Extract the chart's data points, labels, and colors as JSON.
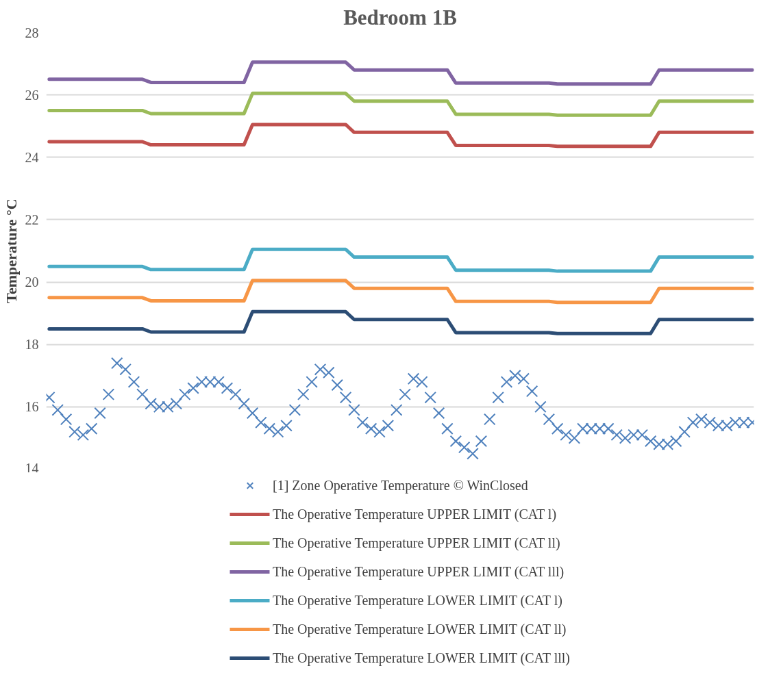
{
  "chart_data": {
    "type": "line",
    "title": "Bedroom 1B",
    "ylabel": "Temperature °C",
    "categories": [
      null,
      null,
      null,
      null,
      null,
      null,
      null,
      null,
      null,
      null,
      null,
      null,
      null,
      null,
      null,
      null,
      null,
      null,
      null,
      null,
      null,
      null,
      null,
      null,
      null,
      null,
      null,
      null,
      null,
      null,
      null,
      null,
      null,
      null,
      null,
      null,
      null,
      null,
      null,
      null,
      null,
      null,
      null,
      null,
      null,
      null,
      null,
      null,
      null,
      null,
      null,
      null,
      null,
      null,
      null,
      null,
      null,
      null,
      null,
      null,
      null,
      null,
      null,
      null,
      null,
      null,
      null,
      null,
      null,
      null,
      null,
      null,
      null,
      null,
      null,
      null,
      null,
      null,
      null,
      null,
      null,
      null,
      null,
      null
    ],
    "ylim": [
      14,
      28
    ],
    "yticks": [
      14,
      16,
      18,
      20,
      22,
      24,
      26,
      28
    ],
    "grid": "y",
    "legend": "bottom",
    "series": [
      {
        "name": "[1] Zone Operative Temperature © WinClosed",
        "type": "scatter",
        "marker": "cross",
        "color": "#4f81bd",
        "values": [
          16.3,
          15.9,
          15.6,
          15.2,
          15.1,
          15.3,
          15.8,
          16.4,
          17.4,
          17.2,
          16.8,
          16.4,
          16.1,
          16.0,
          16.0,
          16.1,
          16.4,
          16.6,
          16.8,
          16.8,
          16.8,
          16.6,
          16.4,
          16.1,
          15.8,
          15.5,
          15.3,
          15.2,
          15.4,
          15.9,
          16.4,
          16.8,
          17.2,
          17.1,
          16.7,
          16.3,
          15.9,
          15.5,
          15.3,
          15.2,
          15.4,
          15.9,
          16.4,
          16.9,
          16.8,
          16.3,
          15.8,
          15.3,
          14.9,
          14.7,
          14.5,
          14.9,
          15.6,
          16.3,
          16.8,
          17.0,
          16.9,
          16.5,
          16.0,
          15.6,
          15.3,
          15.1,
          15.0,
          15.3,
          15.3,
          15.3,
          15.3,
          15.1,
          15.0,
          15.1,
          15.1,
          14.9,
          14.8,
          14.8,
          14.9,
          15.2,
          15.5,
          15.6,
          15.5,
          15.4,
          15.4,
          15.5,
          15.5,
          15.5
        ]
      },
      {
        "name": "The Operative Temperature UPPER LIMIT (CAT l)",
        "color": "#c0504d",
        "values": [
          24.5,
          24.5,
          24.5,
          24.5,
          24.5,
          24.5,
          24.5,
          24.5,
          24.5,
          24.5,
          24.5,
          24.5,
          24.4,
          24.4,
          24.4,
          24.4,
          24.4,
          24.4,
          24.4,
          24.4,
          24.4,
          24.4,
          24.4,
          24.4,
          25.05,
          25.05,
          25.05,
          25.05,
          25.05,
          25.05,
          25.05,
          25.05,
          25.05,
          25.05,
          25.05,
          25.05,
          24.8,
          24.8,
          24.8,
          24.8,
          24.8,
          24.8,
          24.8,
          24.8,
          24.8,
          24.8,
          24.8,
          24.8,
          24.38,
          24.38,
          24.38,
          24.38,
          24.38,
          24.38,
          24.38,
          24.38,
          24.38,
          24.38,
          24.38,
          24.38,
          24.35,
          24.35,
          24.35,
          24.35,
          24.35,
          24.35,
          24.35,
          24.35,
          24.35,
          24.35,
          24.35,
          24.35,
          24.8,
          24.8,
          24.8,
          24.8,
          24.8,
          24.8,
          24.8,
          24.8,
          24.8,
          24.8,
          24.8,
          24.8
        ]
      },
      {
        "name": "The Operative Temperature UPPER LIMIT (CAT ll)",
        "color": "#9bbb59",
        "values": [
          25.5,
          25.5,
          25.5,
          25.5,
          25.5,
          25.5,
          25.5,
          25.5,
          25.5,
          25.5,
          25.5,
          25.5,
          25.4,
          25.4,
          25.4,
          25.4,
          25.4,
          25.4,
          25.4,
          25.4,
          25.4,
          25.4,
          25.4,
          25.4,
          26.05,
          26.05,
          26.05,
          26.05,
          26.05,
          26.05,
          26.05,
          26.05,
          26.05,
          26.05,
          26.05,
          26.05,
          25.8,
          25.8,
          25.8,
          25.8,
          25.8,
          25.8,
          25.8,
          25.8,
          25.8,
          25.8,
          25.8,
          25.8,
          25.38,
          25.38,
          25.38,
          25.38,
          25.38,
          25.38,
          25.38,
          25.38,
          25.38,
          25.38,
          25.38,
          25.38,
          25.35,
          25.35,
          25.35,
          25.35,
          25.35,
          25.35,
          25.35,
          25.35,
          25.35,
          25.35,
          25.35,
          25.35,
          25.8,
          25.8,
          25.8,
          25.8,
          25.8,
          25.8,
          25.8,
          25.8,
          25.8,
          25.8,
          25.8,
          25.8
        ]
      },
      {
        "name": "The Operative Temperature UPPER LIMIT (CAT lll)",
        "color": "#8064a2",
        "values": [
          26.5,
          26.5,
          26.5,
          26.5,
          26.5,
          26.5,
          26.5,
          26.5,
          26.5,
          26.5,
          26.5,
          26.5,
          26.4,
          26.4,
          26.4,
          26.4,
          26.4,
          26.4,
          26.4,
          26.4,
          26.4,
          26.4,
          26.4,
          26.4,
          27.05,
          27.05,
          27.05,
          27.05,
          27.05,
          27.05,
          27.05,
          27.05,
          27.05,
          27.05,
          27.05,
          27.05,
          26.8,
          26.8,
          26.8,
          26.8,
          26.8,
          26.8,
          26.8,
          26.8,
          26.8,
          26.8,
          26.8,
          26.8,
          26.38,
          26.38,
          26.38,
          26.38,
          26.38,
          26.38,
          26.38,
          26.38,
          26.38,
          26.38,
          26.38,
          26.38,
          26.35,
          26.35,
          26.35,
          26.35,
          26.35,
          26.35,
          26.35,
          26.35,
          26.35,
          26.35,
          26.35,
          26.35,
          26.8,
          26.8,
          26.8,
          26.8,
          26.8,
          26.8,
          26.8,
          26.8,
          26.8,
          26.8,
          26.8,
          26.8
        ]
      },
      {
        "name": "The Operative Temperature LOWER LIMIT (CAT l)",
        "color": "#4bacc6",
        "values": [
          20.5,
          20.5,
          20.5,
          20.5,
          20.5,
          20.5,
          20.5,
          20.5,
          20.5,
          20.5,
          20.5,
          20.5,
          20.4,
          20.4,
          20.4,
          20.4,
          20.4,
          20.4,
          20.4,
          20.4,
          20.4,
          20.4,
          20.4,
          20.4,
          21.05,
          21.05,
          21.05,
          21.05,
          21.05,
          21.05,
          21.05,
          21.05,
          21.05,
          21.05,
          21.05,
          21.05,
          20.8,
          20.8,
          20.8,
          20.8,
          20.8,
          20.8,
          20.8,
          20.8,
          20.8,
          20.8,
          20.8,
          20.8,
          20.38,
          20.38,
          20.38,
          20.38,
          20.38,
          20.38,
          20.38,
          20.38,
          20.38,
          20.38,
          20.38,
          20.38,
          20.35,
          20.35,
          20.35,
          20.35,
          20.35,
          20.35,
          20.35,
          20.35,
          20.35,
          20.35,
          20.35,
          20.35,
          20.8,
          20.8,
          20.8,
          20.8,
          20.8,
          20.8,
          20.8,
          20.8,
          20.8,
          20.8,
          20.8,
          20.8
        ]
      },
      {
        "name": "The Operative Temperature LOWER LIMIT (CAT ll)",
        "color": "#f79646",
        "values": [
          19.5,
          19.5,
          19.5,
          19.5,
          19.5,
          19.5,
          19.5,
          19.5,
          19.5,
          19.5,
          19.5,
          19.5,
          19.4,
          19.4,
          19.4,
          19.4,
          19.4,
          19.4,
          19.4,
          19.4,
          19.4,
          19.4,
          19.4,
          19.4,
          20.05,
          20.05,
          20.05,
          20.05,
          20.05,
          20.05,
          20.05,
          20.05,
          20.05,
          20.05,
          20.05,
          20.05,
          19.8,
          19.8,
          19.8,
          19.8,
          19.8,
          19.8,
          19.8,
          19.8,
          19.8,
          19.8,
          19.8,
          19.8,
          19.38,
          19.38,
          19.38,
          19.38,
          19.38,
          19.38,
          19.38,
          19.38,
          19.38,
          19.38,
          19.38,
          19.38,
          19.35,
          19.35,
          19.35,
          19.35,
          19.35,
          19.35,
          19.35,
          19.35,
          19.35,
          19.35,
          19.35,
          19.35,
          19.8,
          19.8,
          19.8,
          19.8,
          19.8,
          19.8,
          19.8,
          19.8,
          19.8,
          19.8,
          19.8,
          19.8
        ]
      },
      {
        "name": "The Operative Temperature LOWER LIMIT (CAT lll)",
        "color": "#2c4d75",
        "values": [
          18.5,
          18.5,
          18.5,
          18.5,
          18.5,
          18.5,
          18.5,
          18.5,
          18.5,
          18.5,
          18.5,
          18.5,
          18.4,
          18.4,
          18.4,
          18.4,
          18.4,
          18.4,
          18.4,
          18.4,
          18.4,
          18.4,
          18.4,
          18.4,
          19.05,
          19.05,
          19.05,
          19.05,
          19.05,
          19.05,
          19.05,
          19.05,
          19.05,
          19.05,
          19.05,
          19.05,
          18.8,
          18.8,
          18.8,
          18.8,
          18.8,
          18.8,
          18.8,
          18.8,
          18.8,
          18.8,
          18.8,
          18.8,
          18.38,
          18.38,
          18.38,
          18.38,
          18.38,
          18.38,
          18.38,
          18.38,
          18.38,
          18.38,
          18.38,
          18.38,
          18.35,
          18.35,
          18.35,
          18.35,
          18.35,
          18.35,
          18.35,
          18.35,
          18.35,
          18.35,
          18.35,
          18.35,
          18.8,
          18.8,
          18.8,
          18.8,
          18.8,
          18.8,
          18.8,
          18.8,
          18.8,
          18.8,
          18.8,
          18.8
        ]
      }
    ]
  }
}
